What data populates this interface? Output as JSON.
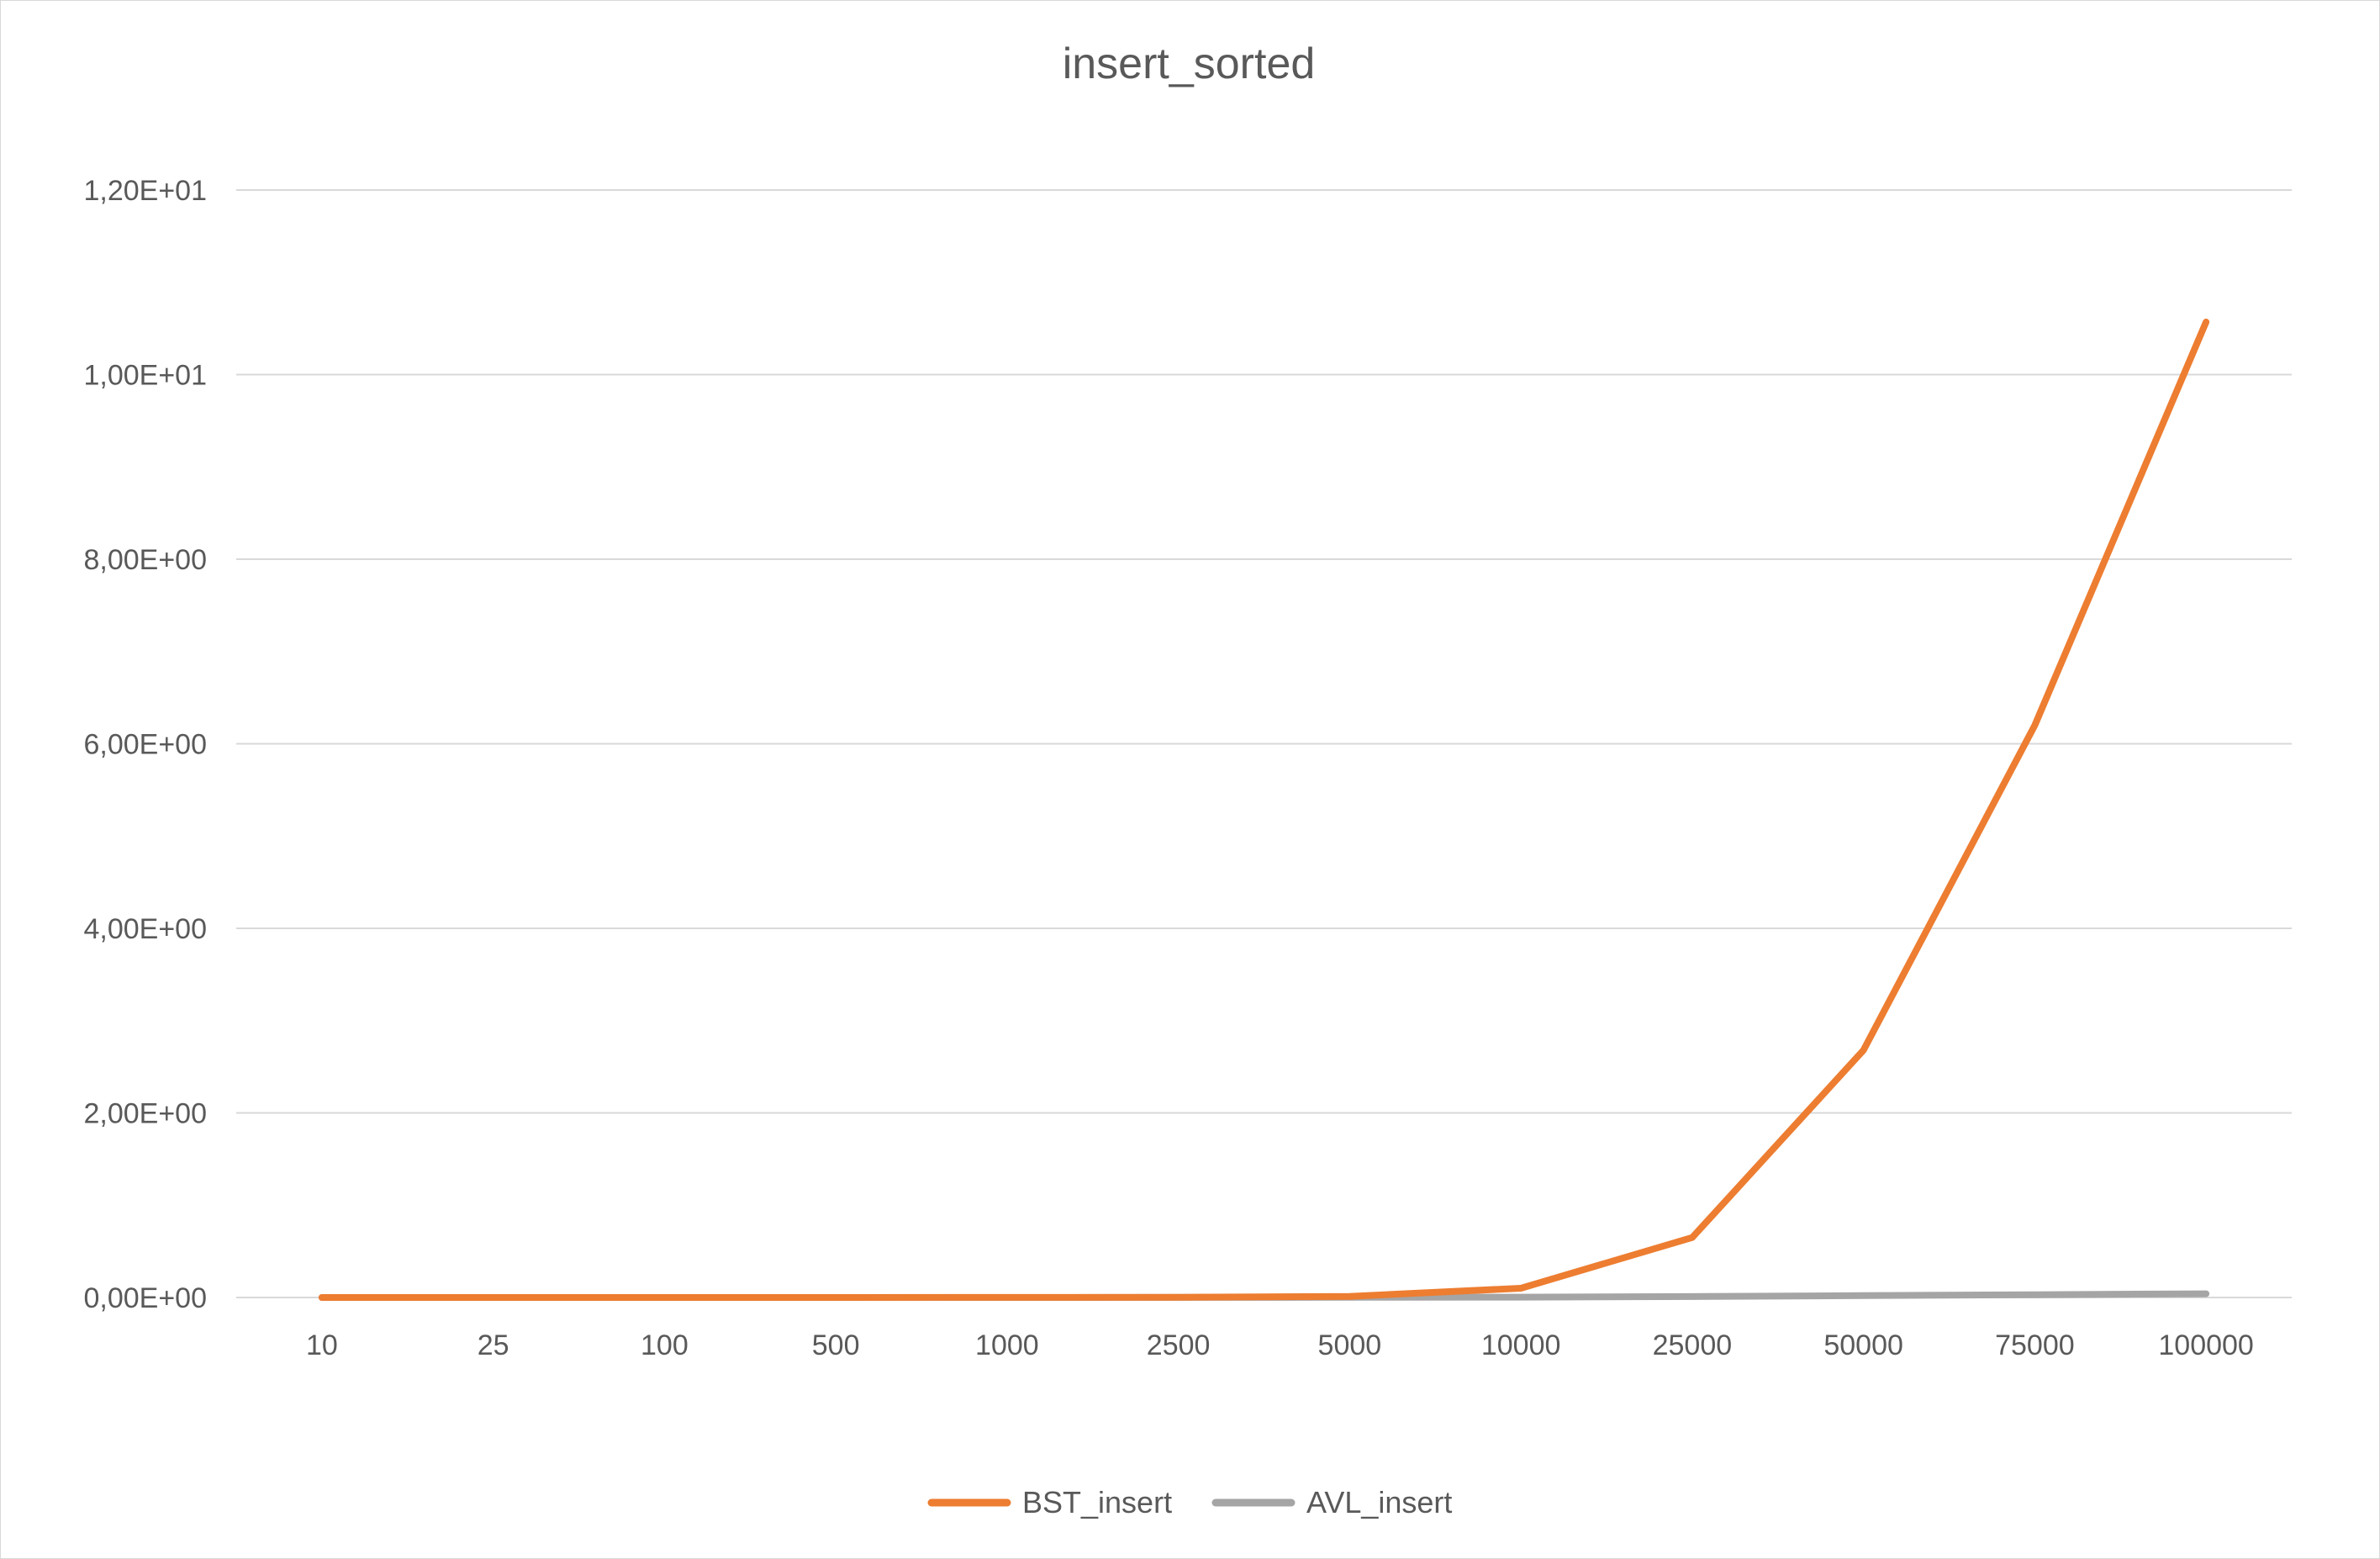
{
  "chart_data": {
    "type": "line",
    "title": "insert_sorted",
    "xlabel": "",
    "ylabel": "",
    "categories": [
      "10",
      "25",
      "100",
      "500",
      "1000",
      "2500",
      "5000",
      "10000",
      "25000",
      "50000",
      "75000",
      "100000"
    ],
    "series": [
      {
        "name": "BST_insert",
        "color": "#ed7d31",
        "values": [
          0.0,
          0.0,
          0.0,
          0.0,
          0.0005,
          0.003,
          0.012,
          0.1,
          0.65,
          2.68,
          6.2,
          10.57
        ]
      },
      {
        "name": "AVL_insert",
        "color": "#a5a5a5",
        "values": [
          0.0,
          0.0,
          0.0,
          0.0,
          0.0,
          0.001,
          0.002,
          0.004,
          0.01,
          0.02,
          0.03,
          0.04
        ]
      }
    ],
    "ylim": [
      0,
      12
    ],
    "yticks": [
      "0,00E+00",
      "2,00E+00",
      "4,00E+00",
      "6,00E+00",
      "8,00E+00",
      "1,00E+01",
      "1,20E+01"
    ],
    "ytick_values": [
      0,
      2,
      4,
      6,
      8,
      10,
      12
    ],
    "grid": true,
    "gridline_color": "#d9d9d9",
    "legend_position": "bottom"
  }
}
